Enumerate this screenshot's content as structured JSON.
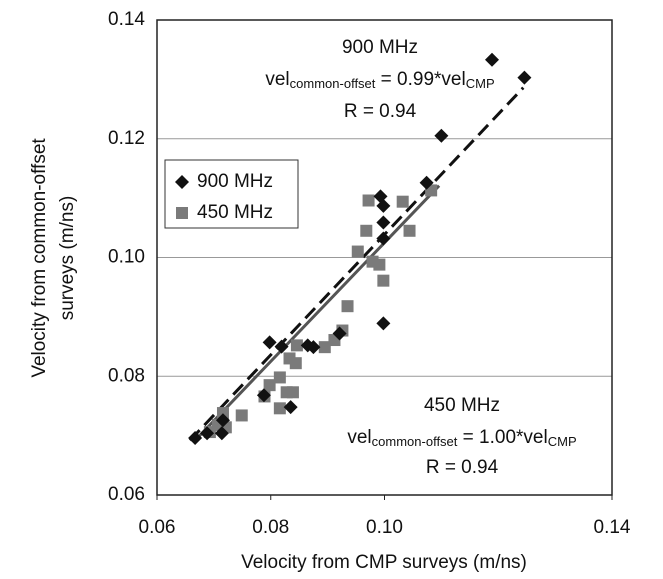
{
  "chart_data": {
    "type": "scatter",
    "x_label": "Velocity from CMP surveys (m/ns)",
    "y_label": [
      "Velocity from common-offset",
      "surveys (m/ns)"
    ],
    "xlim": [
      0.06,
      0.14
    ],
    "ylim": [
      0.06,
      0.14
    ],
    "xticks": [
      0.06,
      0.08,
      {
        "value": 0.1,
        "label": "0.10"
      },
      0.14
    ],
    "yticks": [
      0.06,
      0.08,
      {
        "value": 0.1,
        "label": "0.10"
      },
      0.12,
      0.14
    ],
    "grid": true,
    "series": [
      {
        "name": "900 MHz",
        "color": "#111111",
        "marker": "diamond",
        "x": [
          0.1189,
          0.1246,
          0.11,
          0.1074,
          0.0993,
          0.0998,
          0.0998,
          0.0998,
          0.0998,
          0.0798,
          0.0819,
          0.0865,
          0.0875,
          0.0921,
          0.0788,
          0.0835,
          0.0667,
          0.0688,
          0.0714,
          0.0716
        ],
        "values": [
          0.1333,
          0.1303,
          0.1205,
          0.1126,
          0.1103,
          0.1087,
          0.1059,
          0.1032,
          0.0889,
          0.0857,
          0.085,
          0.0852,
          0.0849,
          0.0872,
          0.0768,
          0.0748,
          0.0696,
          0.0704,
          0.0704,
          0.0726
        ]
      },
      {
        "name": "450 MHz",
        "color": "#7a7a7a",
        "marker": "square",
        "x": [
          0.1082,
          0.1044,
          0.1032,
          0.0972,
          0.0968,
          0.0953,
          0.0979,
          0.0991,
          0.0998,
          0.0935,
          0.0926,
          0.0912,
          0.0895,
          0.0846,
          0.0833,
          0.0844,
          0.0816,
          0.0828,
          0.0798,
          0.0789,
          0.0816,
          0.0839,
          0.0749,
          0.0716,
          0.0707,
          0.0693,
          0.0721
        ],
        "values": [
          0.1113,
          0.1045,
          0.1094,
          0.1096,
          0.1045,
          0.101,
          0.0993,
          0.0988,
          0.0961,
          0.0918,
          0.0877,
          0.0861,
          0.0849,
          0.0852,
          0.083,
          0.0822,
          0.0798,
          0.0773,
          0.0785,
          0.0766,
          0.0746,
          0.0773,
          0.0734,
          0.0738,
          0.0718,
          0.0706,
          0.0714
        ]
      }
    ],
    "fits": [
      {
        "color": "#111111",
        "dashed": true,
        "x": [
          0.0658,
          0.1244
        ],
        "values": [
          0.0692,
          0.1286
        ]
      },
      {
        "color": "#555555",
        "dashed": false,
        "x": [
          0.0667,
          0.1096
        ],
        "values": [
          0.0692,
          0.1121
        ]
      }
    ],
    "annotations": [
      {
        "title": "900 MHz",
        "equation": [
          "vel",
          "common-offset",
          " = 0.99*vel",
          "CMP"
        ],
        "r": "R = 0.94"
      },
      {
        "title": "450 MHz",
        "equation": [
          "vel",
          "common-offset",
          " = 1.00*vel",
          "CMP"
        ],
        "r": "R = 0.94"
      }
    ]
  }
}
